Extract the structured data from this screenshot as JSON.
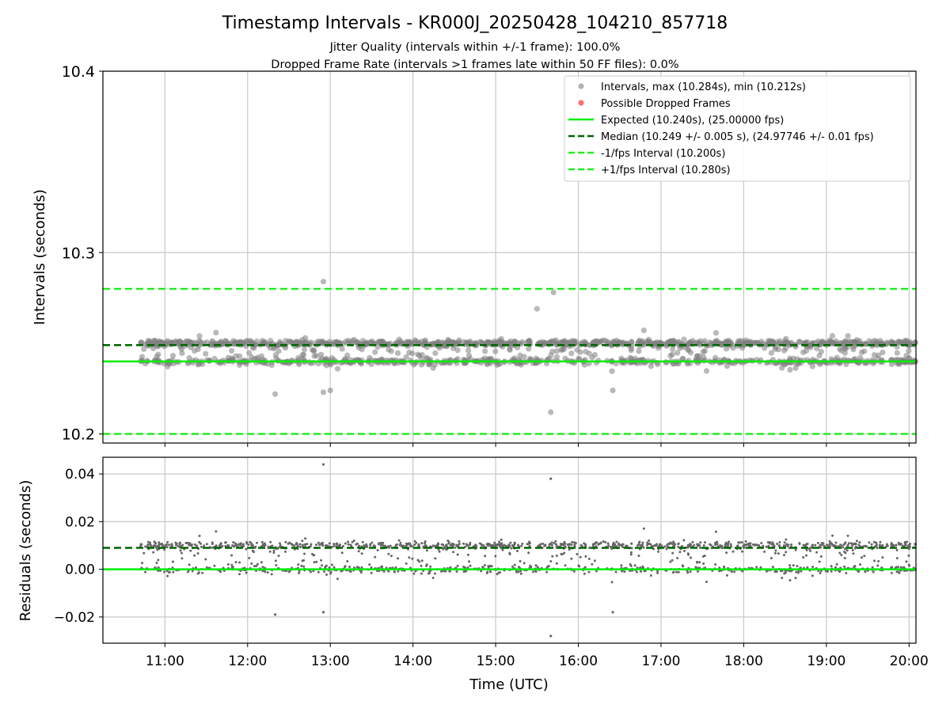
{
  "figure": {
    "title": "Timestamp Intervals - KR000J_20250428_104210_857718",
    "subtitle_1": "Jitter Quality (intervals within +/-1 frame): 100.0%",
    "subtitle_2": "Dropped Frame Rate (intervals >1 frames late within 50 FF files): 0.0%",
    "xlabel": "Time (UTC)"
  },
  "colors": {
    "points": "#808080",
    "dropped": "#ff4040",
    "expected": "#00ee00",
    "median": "#006400",
    "fps_bounds": "#22ee22",
    "grid": "#c8c8c8"
  },
  "chart_data": [
    {
      "type": "scatter",
      "panel": "intervals",
      "ylabel": "Intervals (seconds)",
      "x_range": [
        "10:15",
        "20:05"
      ],
      "x_ticks": [
        "11:00",
        "12:00",
        "13:00",
        "14:00",
        "15:00",
        "16:00",
        "17:00",
        "18:00",
        "19:00",
        "20:00"
      ],
      "ylim": [
        10.195,
        10.4
      ],
      "y_ticks": [
        "10.2",
        "10.3",
        "10.4"
      ],
      "grid": true,
      "legend_position": "top-right",
      "legend": [
        "Intervals, max (10.284s), min (10.212s)",
        "Possible Dropped Frames",
        "Expected (10.240s), (25.00000 fps)",
        "Median (10.249 +/- 0.005 s), (24.97746 +/- 0.01 fps)",
        "-1/fps Interval (10.200s)",
        "+1/fps Interval (10.280s)"
      ],
      "reference_lines": {
        "expected": 10.24,
        "median": 10.249,
        "minus_fps": 10.2,
        "plus_fps": 10.28
      },
      "series_summary": {
        "time_start": "10:42",
        "time_end": "20:05",
        "max": 10.284,
        "min": 10.212,
        "upper_band": 10.25,
        "lower_band": 10.24,
        "dropped_frames": 0
      },
      "notable_points": [
        {
          "t": "12:55",
          "y": 10.284
        },
        {
          "t": "15:40",
          "y": 10.212
        },
        {
          "t": "15:42",
          "y": 10.278
        },
        {
          "t": "12:20",
          "y": 10.222
        },
        {
          "t": "12:55",
          "y": 10.223
        },
        {
          "t": "13:00",
          "y": 10.224
        },
        {
          "t": "15:30",
          "y": 10.269
        },
        {
          "t": "16:25",
          "y": 10.224
        }
      ]
    },
    {
      "type": "scatter",
      "panel": "residuals",
      "ylabel": "Residuals (seconds)",
      "x_range": [
        "10:15",
        "20:05"
      ],
      "x_ticks": [
        "11:00",
        "12:00",
        "13:00",
        "14:00",
        "15:00",
        "16:00",
        "17:00",
        "18:00",
        "19:00",
        "20:00"
      ],
      "ylim": [
        -0.031,
        0.047
      ],
      "y_ticks": [
        "−0.02",
        "0.00",
        "0.02",
        "0.04"
      ],
      "grid": true,
      "reference_lines": {
        "zero": 0.0,
        "median": 0.009
      },
      "notable_points": [
        {
          "t": "12:55",
          "y": 0.044
        },
        {
          "t": "15:40",
          "y": 0.038
        },
        {
          "t": "15:40",
          "y": -0.028
        },
        {
          "t": "12:20",
          "y": -0.019
        },
        {
          "t": "12:55",
          "y": -0.018
        },
        {
          "t": "16:25",
          "y": -0.018
        }
      ]
    }
  ]
}
